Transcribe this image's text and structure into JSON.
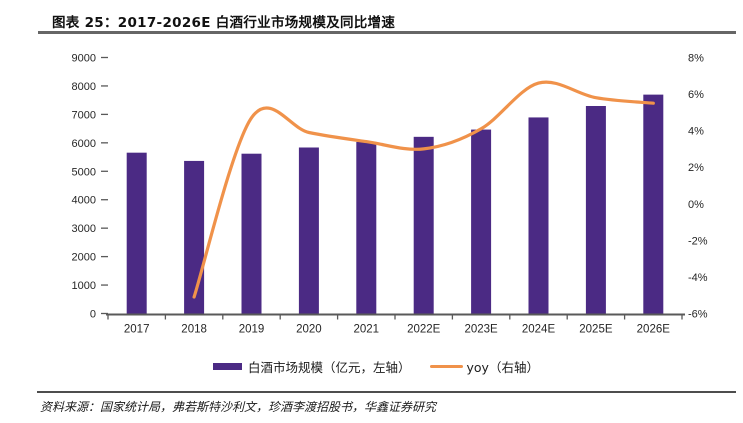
{
  "title": "图表 25：2017-2026E 白酒行业市场规模及同比增速",
  "source": "资料来源：国家统计局，弗若斯特沙利文，珍酒李渡招股书，华鑫证券研究",
  "colors": {
    "bar": "#4B2A84",
    "line": "#F0924A",
    "axis_line": "#595959",
    "axis_text": "#262626"
  },
  "legend": [
    {
      "label": "白酒市场规模（亿元，左轴）",
      "swatch": "bar-swatch",
      "color": "#4B2A84"
    },
    {
      "label": "yoy（右轴）",
      "swatch": "line-swatch",
      "color": "#F0924A"
    }
  ],
  "chart_data": {
    "type": "bar",
    "subtype": "combo-bar-line",
    "categories": [
      "2017",
      "2018",
      "2019",
      "2020",
      "2021",
      "2022E",
      "2023E",
      "2024E",
      "2025E",
      "2026E"
    ],
    "series": [
      {
        "name": "白酒市场规模（亿元，左轴）",
        "type": "bar",
        "axis": "left",
        "values": [
          5654,
          5364,
          5618,
          5836,
          6033,
          6211,
          6466,
          6893,
          7295,
          7695
        ]
      },
      {
        "name": "yoy（右轴）",
        "type": "line",
        "axis": "right",
        "smooth": true,
        "values": [
          null,
          -5.1,
          4.7,
          3.9,
          3.4,
          3.0,
          4.1,
          6.6,
          5.8,
          5.5
        ]
      }
    ],
    "left_axis": {
      "min": 0,
      "max": 9000,
      "step": 1000,
      "tick_labels": [
        "0",
        "1000",
        "2000",
        "3000",
        "4000",
        "5000",
        "6000",
        "7000",
        "8000",
        "9000"
      ]
    },
    "right_axis": {
      "min": -6,
      "max": 8,
      "step": 2,
      "tick_labels_top_down": [
        "8%",
        "6%",
        "4%",
        "2%",
        "0%",
        "-2%",
        "-4%",
        "-6%"
      ]
    },
    "grid": false,
    "legend_position": "bottom"
  }
}
